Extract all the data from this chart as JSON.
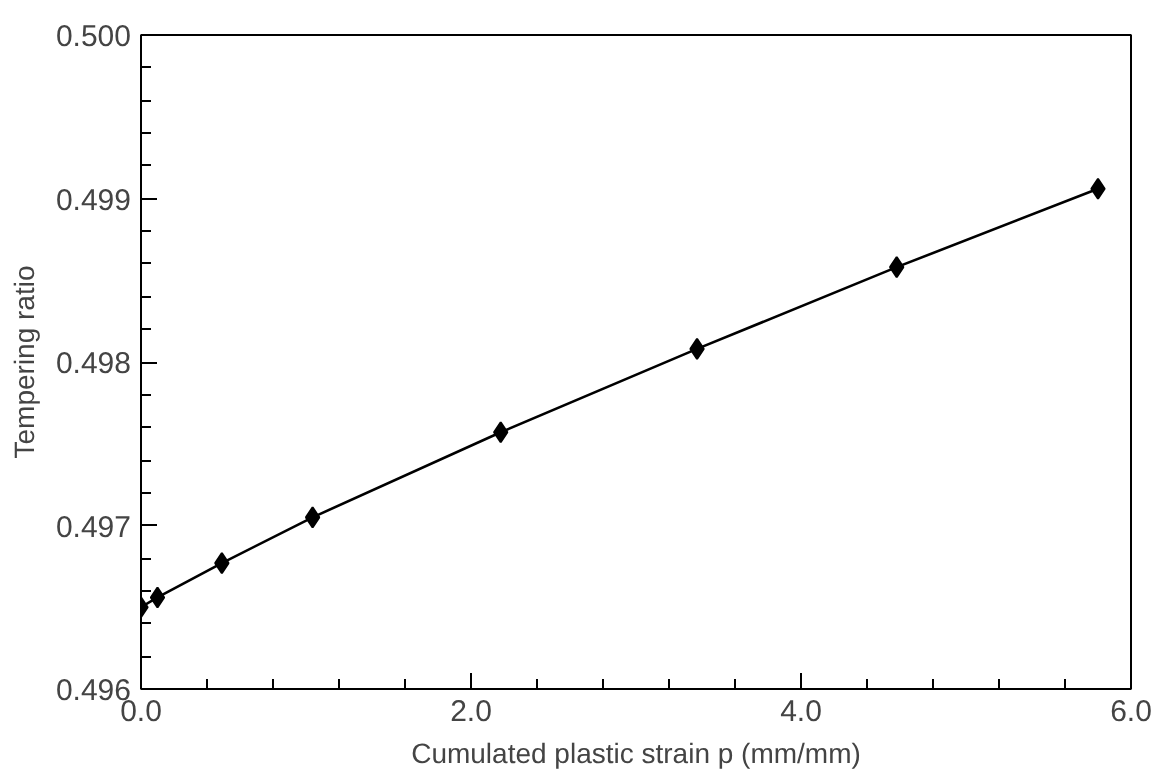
{
  "chart_data": {
    "type": "line",
    "xlabel": "Cumulated plastic strain p (mm/mm)",
    "ylabel": "Tempering ratio",
    "x": [
      0.0,
      0.1,
      0.49,
      1.04,
      2.18,
      3.37,
      4.58,
      5.8
    ],
    "series": [
      {
        "color": "#000000",
        "values": [
          0.4965,
          0.49656,
          0.49677,
          0.49705,
          0.49757,
          0.49808,
          0.49858,
          0.49906
        ]
      }
    ],
    "xlim": [
      0,
      6
    ],
    "ylim": [
      0.496,
      0.5
    ],
    "xticks": [
      {
        "value": 0,
        "label": "0.0"
      },
      {
        "value": 2,
        "label": "2.0"
      },
      {
        "value": 4,
        "label": "4.0"
      },
      {
        "value": 6,
        "label": "6.0"
      }
    ],
    "yticks": [
      {
        "value": 0.496,
        "label": "0.496"
      },
      {
        "value": 0.497,
        "label": "0.497"
      },
      {
        "value": 0.498,
        "label": "0.498"
      },
      {
        "value": 0.499,
        "label": "0.499"
      },
      {
        "value": 0.5,
        "label": "0.500"
      }
    ],
    "grid": false,
    "marker": "diamond",
    "line_style": "solid"
  }
}
